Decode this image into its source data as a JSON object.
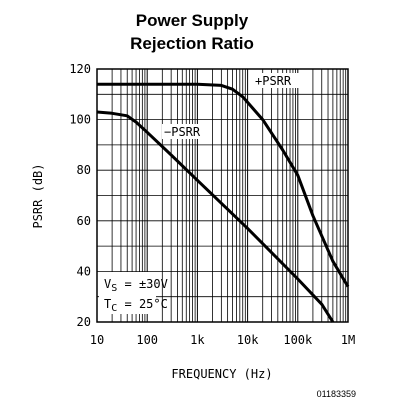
{
  "chart_data": {
    "type": "line",
    "title_line1": "Power Supply",
    "title_line2": "Rejection Ratio",
    "xlabel": "FREQUENCY (Hz)",
    "ylabel": "PSRR (dB)",
    "x_scale": "log",
    "xlim": [
      10,
      1000000
    ],
    "ylim": [
      20,
      120
    ],
    "x_ticks": [
      {
        "value": 10,
        "label": "10"
      },
      {
        "value": 100,
        "label": "100"
      },
      {
        "value": 1000,
        "label": "1k"
      },
      {
        "value": 10000,
        "label": "10k"
      },
      {
        "value": 100000,
        "label": "100k"
      },
      {
        "value": 1000000,
        "label": "1M"
      }
    ],
    "y_ticks": [
      {
        "value": 20,
        "label": "20"
      },
      {
        "value": 40,
        "label": "40"
      },
      {
        "value": 60,
        "label": "60"
      },
      {
        "value": 80,
        "label": "80"
      },
      {
        "value": 100,
        "label": "100"
      },
      {
        "value": 120,
        "label": "120"
      }
    ],
    "grid": true,
    "series": [
      {
        "name": "+PSRR",
        "x": [
          10,
          1000,
          3000,
          5000,
          8000,
          20000,
          50000,
          100000,
          200000,
          500000,
          1000000
        ],
        "y": [
          114,
          114,
          113.5,
          112,
          109,
          100,
          88,
          78,
          62,
          44,
          34
        ]
      },
      {
        "name": "−PSRR",
        "x": [
          10,
          20,
          40,
          60,
          100,
          300,
          1000,
          10000,
          100000,
          300000,
          500000
        ],
        "y": [
          103,
          102.5,
          101.5,
          99,
          95,
          86,
          76,
          57,
          37,
          27,
          20
        ]
      }
    ],
    "annotations": {
      "vs_prefix": "V",
      "vs_sub": "S",
      "vs_value": " = ±30V",
      "tc_prefix": "T",
      "tc_sub": "C",
      "tc_value": " = 25°C"
    },
    "figure_id": "01183359"
  }
}
